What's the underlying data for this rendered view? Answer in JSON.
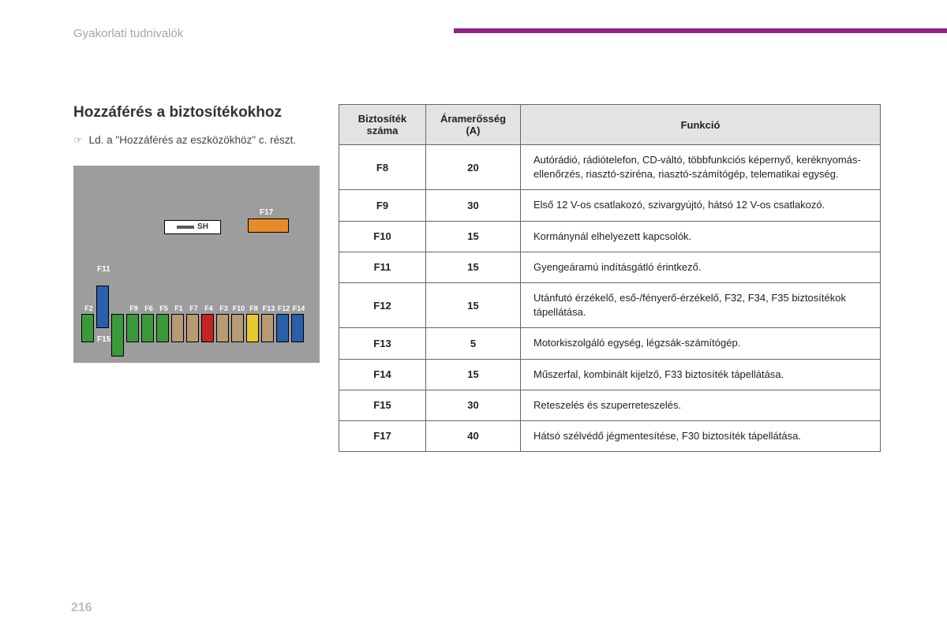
{
  "header": {
    "section": "Gyakorlati tudnivalók",
    "accent_color": "#8e2487"
  },
  "left": {
    "title": "Hozzáférés a biztosítékokhoz",
    "note_text": "Ld. a \"Hozzáférés az eszközökhöz\" c. részt.",
    "sh_label": "SH",
    "f17_label": "F17",
    "f11_label": "F11",
    "f15_label": "F15",
    "diagram_bg": "#9d9d9d",
    "colors": {
      "green": "#3a9a3a",
      "blue": "#2a5faa",
      "tan": "#b89a73",
      "red": "#c52424",
      "yellow": "#e6c82f",
      "orange": "#e98a2a"
    },
    "fuses_row": [
      {
        "label": "F2",
        "color": "green",
        "tall": "none"
      },
      {
        "label": "F11",
        "color": "blue",
        "tall": "up"
      },
      {
        "label": "F15",
        "color": "green",
        "tall": "down"
      },
      {
        "label": "F9",
        "color": "green",
        "tall": "none"
      },
      {
        "label": "F6",
        "color": "green",
        "tall": "none"
      },
      {
        "label": "F5",
        "color": "green",
        "tall": "none"
      },
      {
        "label": "F1",
        "color": "tan",
        "tall": "none"
      },
      {
        "label": "F7",
        "color": "tan",
        "tall": "none"
      },
      {
        "label": "F4",
        "color": "red",
        "tall": "none"
      },
      {
        "label": "F3",
        "color": "tan",
        "tall": "none"
      },
      {
        "label": "F10",
        "color": "tan",
        "tall": "none"
      },
      {
        "label": "F8",
        "color": "yellow",
        "tall": "none"
      },
      {
        "label": "F13",
        "color": "tan",
        "tall": "none"
      },
      {
        "label": "F12",
        "color": "blue",
        "tall": "none"
      },
      {
        "label": "F14",
        "color": "blue",
        "tall": "none"
      }
    ]
  },
  "table": {
    "headers": {
      "num": "Biztosíték száma",
      "amp": "Áramerősség (A)",
      "func": "Funkció"
    },
    "header_bg": "#e3e3e3",
    "border_color": "#666666",
    "rows": [
      {
        "num": "F8",
        "amp": "20",
        "func": "Autórádió, rádiótelefon, CD-váltó, többfunkciós képernyő, keréknyomás-ellenőrzés, riasztó-sziréna, riasztó-számítógép, telematikai egység."
      },
      {
        "num": "F9",
        "amp": "30",
        "func": "Első 12 V-os csatlakozó, szivargyújtó, hátsó 12 V-os csatlakozó."
      },
      {
        "num": "F10",
        "amp": "15",
        "func": "Kormánynál elhelyezett kapcsolók."
      },
      {
        "num": "F11",
        "amp": "15",
        "func": "Gyengeáramú indításgátló érintkező."
      },
      {
        "num": "F12",
        "amp": "15",
        "func": "Utánfutó érzékelő, eső-/fényerő-érzékelő, F32, F34, F35 biztosítékok tápellátása."
      },
      {
        "num": "F13",
        "amp": "5",
        "func": "Motorkiszolgáló egység, légzsák-számítógép."
      },
      {
        "num": "F14",
        "amp": "15",
        "func": "Műszerfal, kombinált kijelző, F33 biztosíték tápellátása."
      },
      {
        "num": "F15",
        "amp": "30",
        "func": "Reteszelés és szuperreteszelés."
      },
      {
        "num": "F17",
        "amp": "40",
        "func": "Hátsó szélvédő jégmentesítése, F30 biztosíték tápellátása."
      }
    ]
  },
  "page_number": "216"
}
